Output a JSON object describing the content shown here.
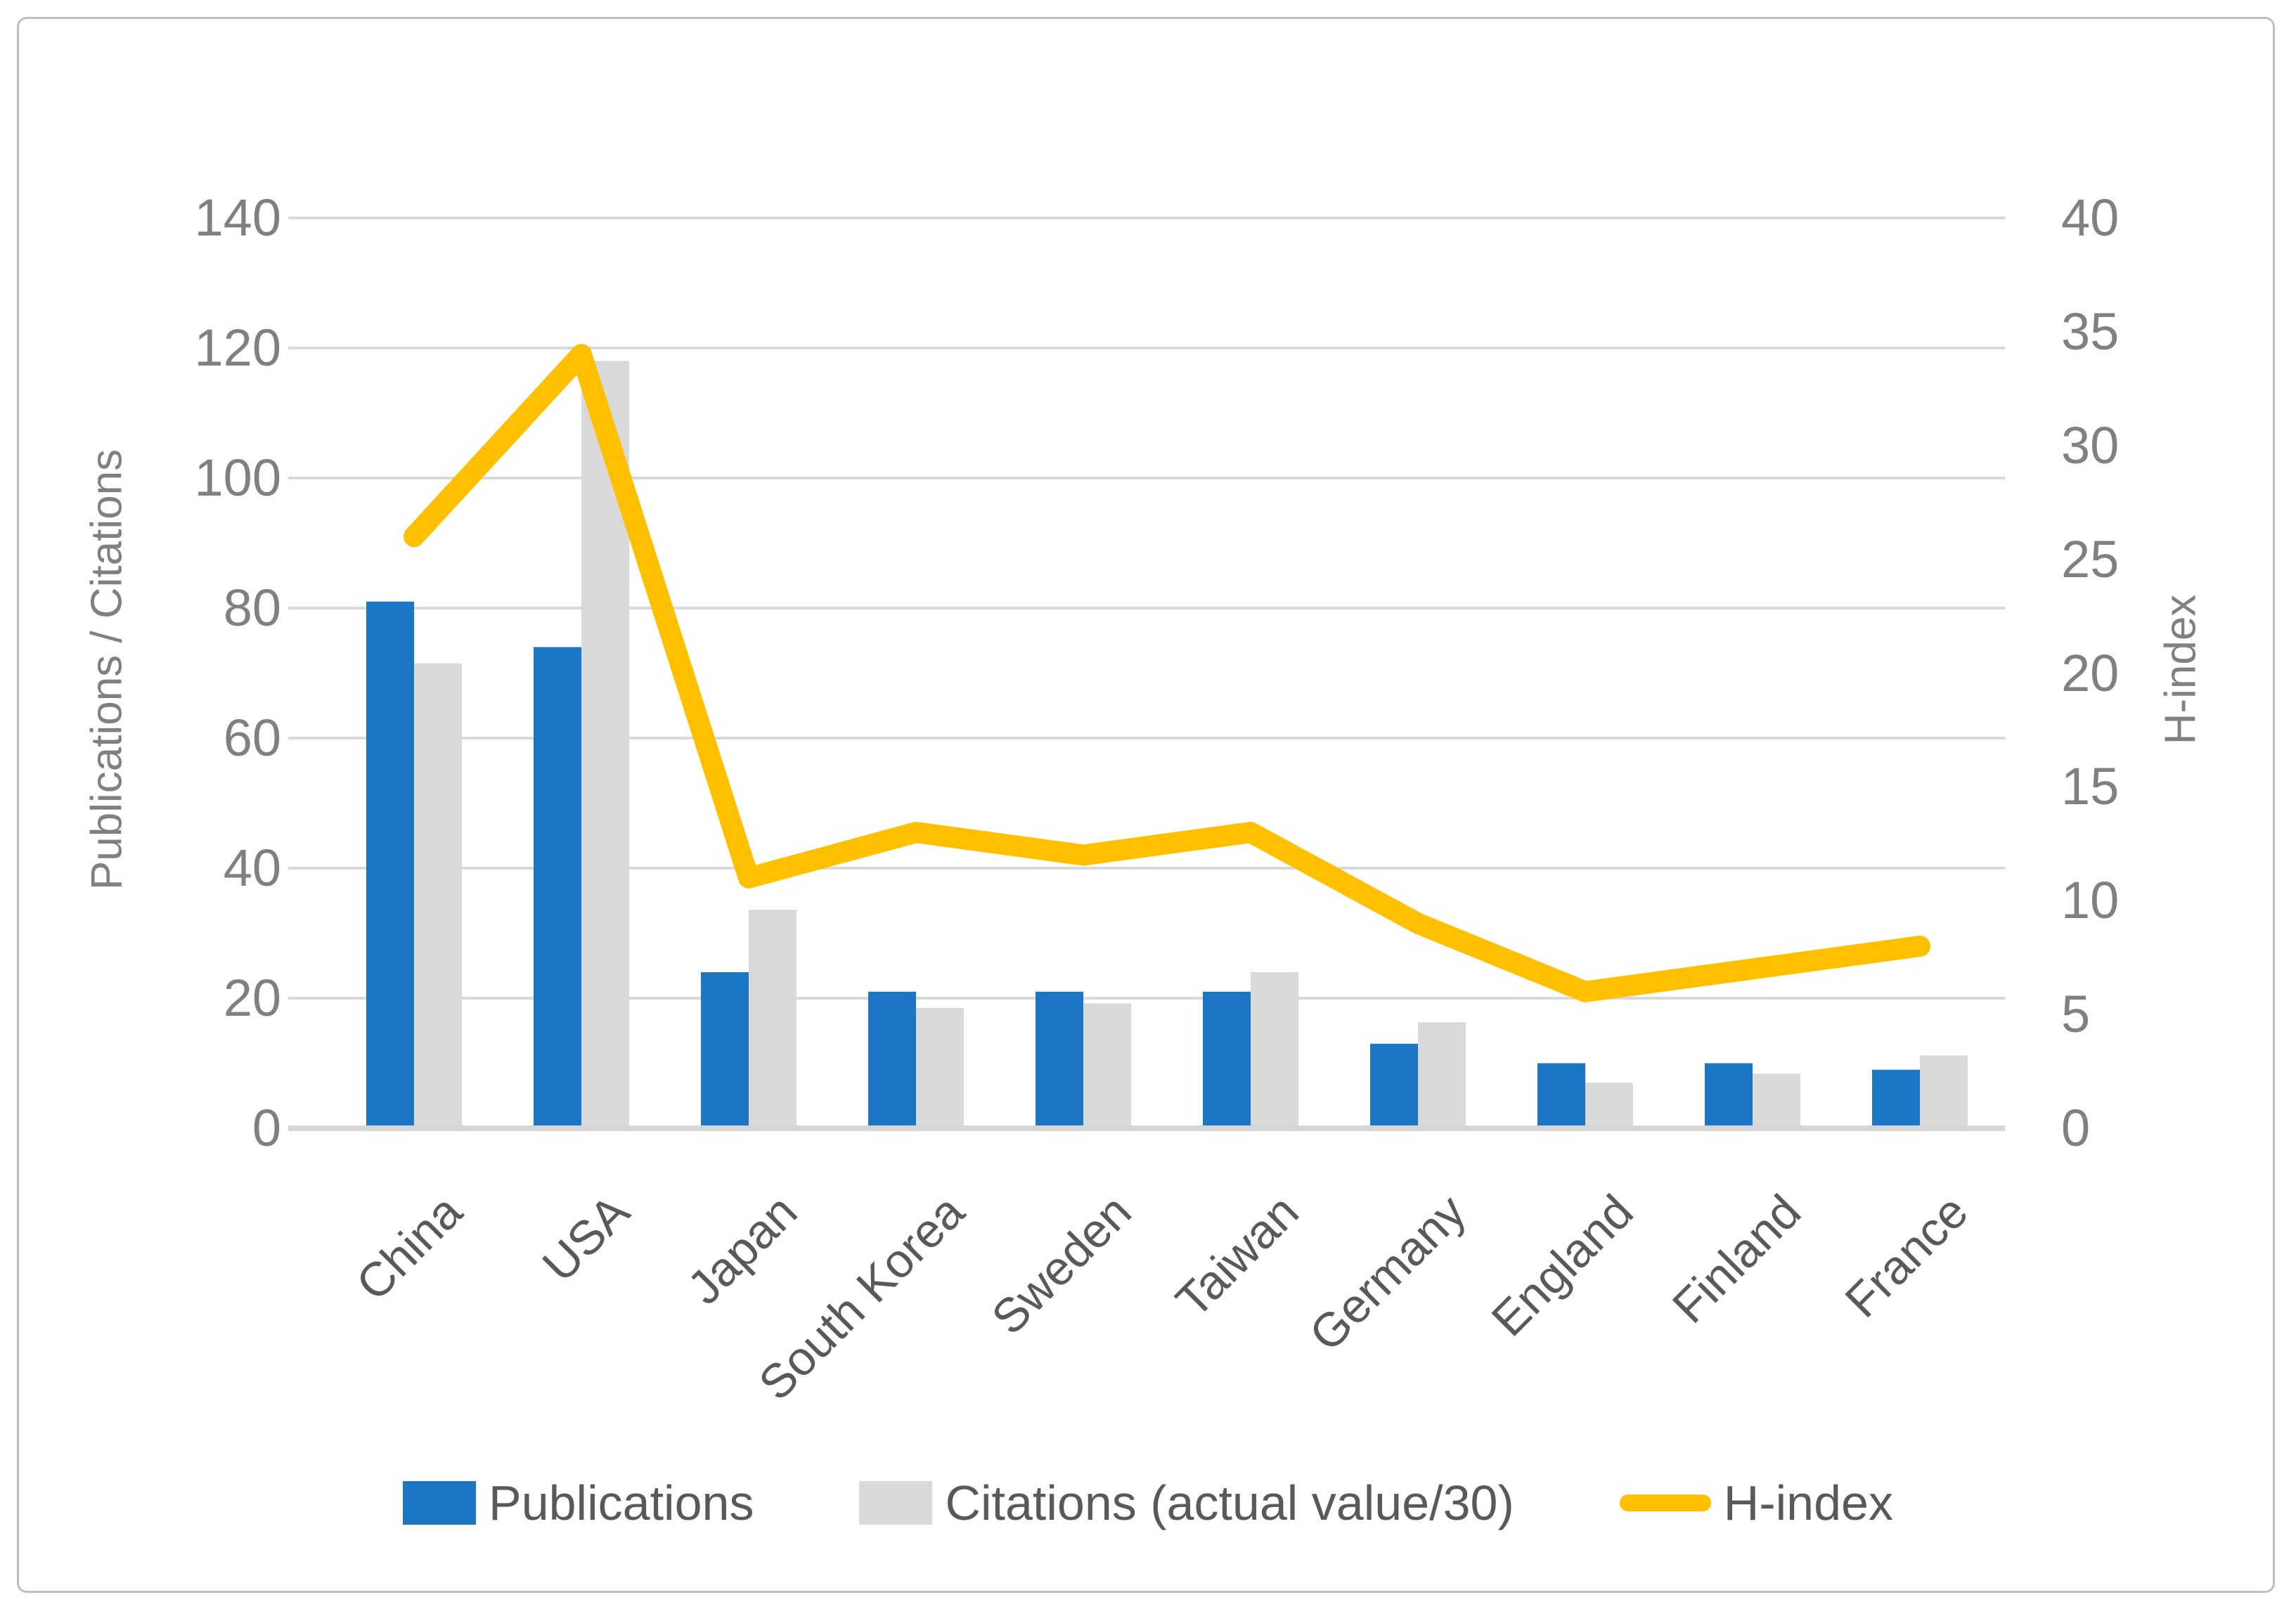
{
  "figure": {
    "background": "#FFFFFF",
    "border_color": "#BFBFBF"
  },
  "left_axis": {
    "title": "Publications / Citations",
    "min": 0,
    "max": 140,
    "step": 20,
    "ticks": [
      "0",
      "20",
      "40",
      "60",
      "80",
      "100",
      "120",
      "140"
    ]
  },
  "right_axis": {
    "title": "H-index",
    "min": 0,
    "max": 40,
    "step": 5,
    "ticks": [
      "0",
      "5",
      "10",
      "15",
      "20",
      "25",
      "30",
      "35",
      "40"
    ]
  },
  "legend": {
    "items": [
      {
        "label": "Publications",
        "marker": "square",
        "color": "#1B76C6"
      },
      {
        "label": "Citations (actual value/30)",
        "marker": "square",
        "color": "#D9D9D9"
      },
      {
        "label": "H-index",
        "marker": "line",
        "color": "#FFC000"
      }
    ]
  },
  "colors": {
    "publications_bar": "#1B76C6",
    "citations_bar": "#D9D9D9",
    "hindex_line": "#FFC000",
    "gridline": "#D9D9D9",
    "axis_line": "#D6D6D6",
    "tick_text": "#808080",
    "category_text": "#595959"
  },
  "chart_data": {
    "type": "bar",
    "subtype": "combo-bar-line-dual-axis",
    "title": "",
    "xlabel": "",
    "ylabel_left": "Publications / Citations",
    "ylabel_right": "H-index",
    "grid": true,
    "legend_position": "bottom",
    "left_axis_range": [
      0,
      140
    ],
    "right_axis_range": [
      0,
      40
    ],
    "categories": [
      "China",
      "USA",
      "Japan",
      "South Korea",
      "Sweden",
      "Taiwan",
      "Germany",
      "England",
      "Finland",
      "France"
    ],
    "series": [
      {
        "name": "Publications",
        "kind": "bar",
        "axis": "left",
        "color": "#1B76C6",
        "values": [
          81,
          74,
          24,
          21,
          21,
          21,
          13,
          10,
          10,
          9
        ]
      },
      {
        "name": "Citations (actual value/30)",
        "kind": "bar",
        "axis": "left",
        "color": "#D9D9D9",
        "values": [
          71.5,
          118,
          33.6,
          18.5,
          19.2,
          24,
          16.3,
          7,
          8.4,
          11.2
        ]
      },
      {
        "name": "H-index",
        "kind": "line",
        "axis": "right",
        "color": "#FFC000",
        "values": [
          26,
          34,
          11,
          13,
          12,
          13,
          9,
          6,
          7,
          8
        ]
      }
    ]
  }
}
